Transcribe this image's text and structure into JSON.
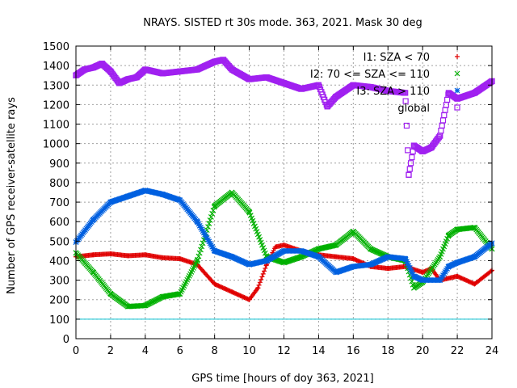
{
  "chart_data": {
    "type": "scatter",
    "title": "NRAYS. SISTED rt 30s mode. 363, 2021. Mask 30 deg",
    "xlabel": "GPS time [hours of doy 363, 2021]",
    "ylabel": "Number of GPS receiver-satellite rays",
    "xlim": [
      0,
      24
    ],
    "ylim": [
      0,
      1500
    ],
    "xticks": [
      "0",
      "2",
      "4",
      "6",
      "8",
      "10",
      "12",
      "14",
      "16",
      "18",
      "20",
      "22",
      "24"
    ],
    "yticks": [
      "0",
      "100",
      "200",
      "300",
      "400",
      "500",
      "600",
      "700",
      "800",
      "900",
      "1000",
      "1100",
      "1200",
      "1300",
      "1400",
      "1500"
    ],
    "grid": true,
    "legend_position": "top-right",
    "reference_line": {
      "y": 100,
      "color": "#00c0d0"
    },
    "series": [
      {
        "name": "I1: SZA < 70",
        "marker": "+",
        "color": "#e00000",
        "x": [
          0,
          1,
          2,
          3,
          4,
          5,
          6,
          7,
          8,
          9,
          10,
          10.5,
          11,
          11.5,
          12,
          13,
          14,
          15,
          16,
          17,
          18,
          19,
          20,
          20.5,
          21,
          22,
          23,
          24
        ],
        "y": [
          420,
          430,
          435,
          425,
          430,
          415,
          410,
          380,
          280,
          240,
          200,
          260,
          380,
          470,
          480,
          450,
          430,
          420,
          410,
          370,
          360,
          370,
          340,
          360,
          300,
          320,
          280,
          350
        ]
      },
      {
        "name": "I2: 70 <= SZA <= 110",
        "marker": "x",
        "color": "#00b000",
        "x": [
          0,
          1,
          2,
          3,
          4,
          5,
          6,
          7,
          8,
          9,
          10,
          11,
          12,
          13,
          14,
          15,
          16,
          17,
          18,
          19,
          19.5,
          20,
          21,
          21.5,
          22,
          23,
          24
        ],
        "y": [
          440,
          340,
          230,
          165,
          170,
          215,
          230,
          400,
          680,
          750,
          650,
          420,
          390,
          420,
          460,
          480,
          550,
          460,
          420,
          400,
          260,
          290,
          420,
          530,
          560,
          570,
          460
        ]
      },
      {
        "name": "I3: SZA > 110",
        "marker": "*",
        "color": "#0060e0",
        "x": [
          0,
          1,
          2,
          3,
          4,
          5,
          6,
          7,
          8,
          9,
          10,
          11,
          12,
          13,
          14,
          15,
          16,
          17,
          18,
          19,
          19.5,
          20,
          21,
          21.5,
          22,
          23,
          24
        ],
        "y": [
          495,
          610,
          700,
          730,
          760,
          740,
          710,
          600,
          450,
          420,
          380,
          400,
          450,
          450,
          420,
          340,
          370,
          380,
          420,
          410,
          320,
          300,
          300,
          370,
          390,
          420,
          490
        ]
      },
      {
        "name": "global",
        "marker": "square",
        "color": "#a020f0",
        "x": [
          0,
          0.5,
          1,
          1.5,
          2,
          2.5,
          3,
          3.5,
          4,
          5,
          6,
          7,
          8,
          8.5,
          9,
          10,
          11,
          12,
          13,
          14,
          14.5,
          15,
          16,
          17,
          18,
          19,
          19.2,
          19.5,
          20,
          20.5,
          21,
          21.5,
          22,
          23,
          24
        ],
        "y": [
          1350,
          1380,
          1390,
          1410,
          1370,
          1310,
          1330,
          1340,
          1380,
          1360,
          1370,
          1380,
          1420,
          1430,
          1380,
          1330,
          1340,
          1310,
          1280,
          1300,
          1190,
          1240,
          1300,
          1290,
          1270,
          1260,
          840,
          990,
          960,
          980,
          1040,
          1260,
          1230,
          1260,
          1320
        ]
      }
    ]
  }
}
